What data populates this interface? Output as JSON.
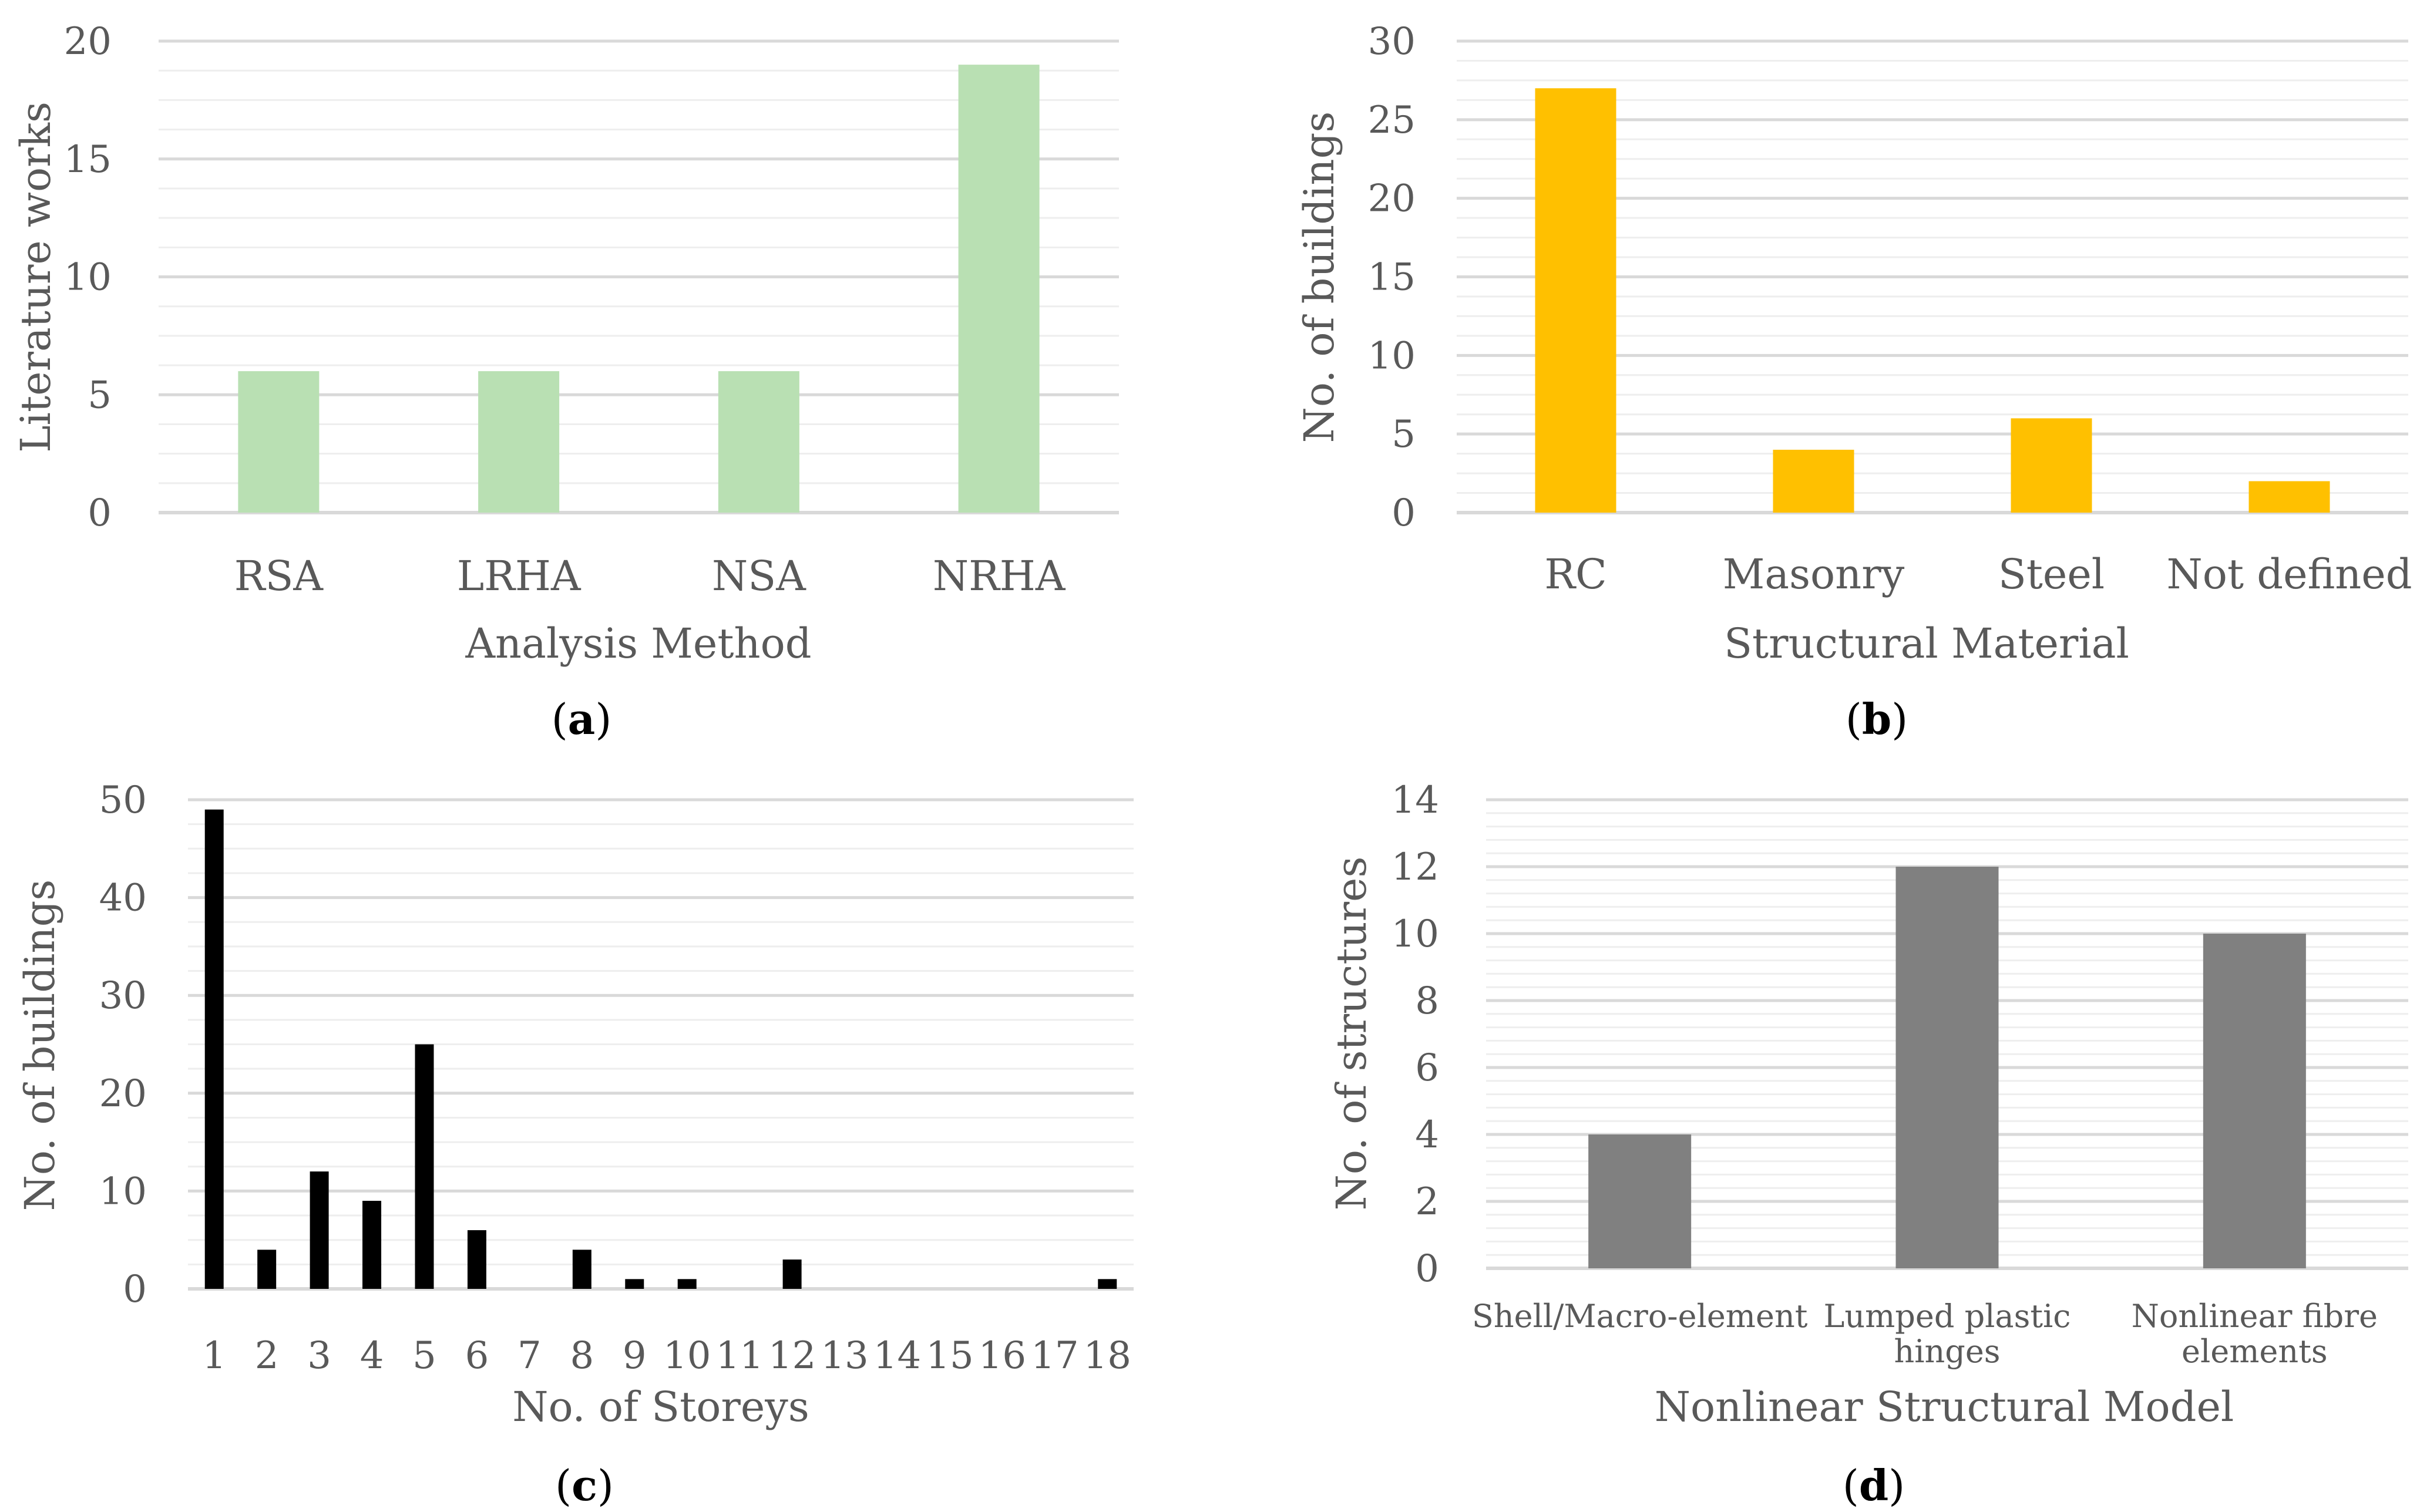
{
  "chart_data": [
    {
      "panel_label": "a",
      "type": "bar",
      "categories": [
        "RSA",
        "LRHA",
        "NSA",
        "NRHA"
      ],
      "values": [
        6,
        6,
        6,
        19
      ],
      "xlabel": "Analysis Method",
      "ylabel": "Literature works",
      "ylim": [
        0,
        20
      ],
      "yticks": [
        0,
        5,
        10,
        15,
        20
      ],
      "grid": true,
      "color": "#b9e0b3"
    },
    {
      "panel_label": "b",
      "type": "bar",
      "categories": [
        "RC",
        "Masonry",
        "Steel",
        "Not defined"
      ],
      "values": [
        27,
        4,
        6,
        2
      ],
      "xlabel": "Structural Material",
      "ylabel": "No. of buildings",
      "ylim": [
        0,
        30
      ],
      "yticks": [
        0,
        5,
        10,
        15,
        20,
        25,
        30
      ],
      "grid": true,
      "color": "#ffc000"
    },
    {
      "panel_label": "c",
      "type": "bar",
      "categories": [
        "1",
        "2",
        "3",
        "4",
        "5",
        "6",
        "7",
        "8",
        "9",
        "10",
        "11",
        "12",
        "13",
        "14",
        "15",
        "16",
        "17",
        "18"
      ],
      "values": [
        49,
        4,
        12,
        9,
        25,
        6,
        0,
        4,
        1,
        1,
        0,
        3,
        0,
        0,
        0,
        0,
        0,
        1
      ],
      "xlabel": "No. of Storeys",
      "ylabel": "No. of buildings",
      "ylim": [
        0,
        50
      ],
      "yticks": [
        0,
        10,
        20,
        30,
        40,
        50
      ],
      "grid": true,
      "color": "#000000"
    },
    {
      "panel_label": "d",
      "type": "bar",
      "categories": [
        [
          "Shell/Macro-element"
        ],
        [
          "Lumped plastic",
          "hinges"
        ],
        [
          "Nonlinear fibre",
          "elements"
        ]
      ],
      "values": [
        4,
        12,
        10
      ],
      "xlabel": "Nonlinear Structural Model",
      "ylabel": "No. of structures",
      "ylim": [
        0,
        14
      ],
      "yticks": [
        0,
        2,
        4,
        6,
        8,
        10,
        12,
        14
      ],
      "grid": true,
      "color": "#808080"
    }
  ]
}
